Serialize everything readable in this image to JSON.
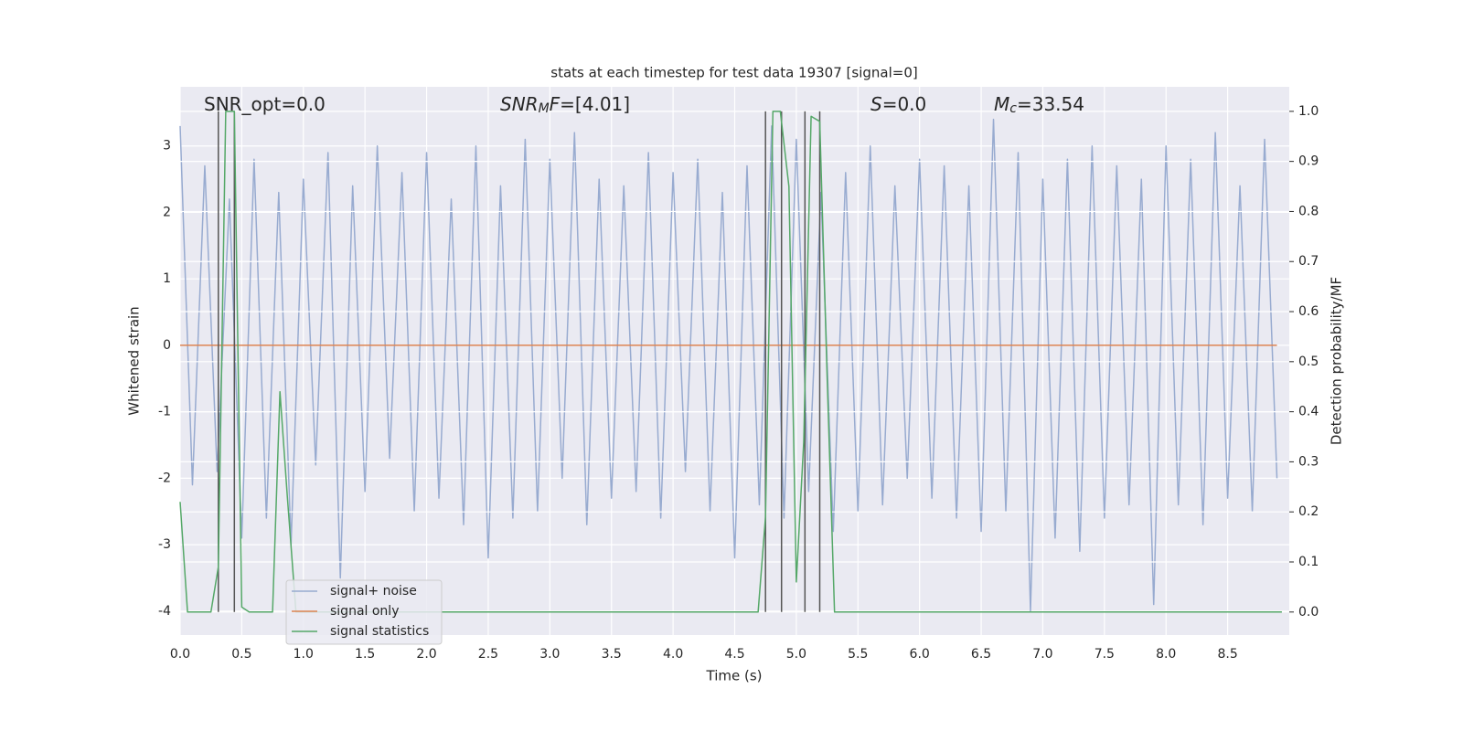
{
  "chart_data": {
    "type": "line",
    "title": "stats at each timestep for test data 19307 [signal=0]",
    "xlabel": "Time (s)",
    "ylabel": "Whitened strain",
    "y2label": "Detection probability/MF",
    "xlim": [
      0,
      9.0
    ],
    "ylim": [
      -4.36,
      3.89
    ],
    "y2lim": [
      -0.046,
      1.049
    ],
    "xticks": [
      {
        "value": 0,
        "label": "0.0"
      },
      0.5,
      {
        "value": 1,
        "label": "1.0"
      },
      1.5,
      {
        "value": 2,
        "label": "2.0"
      },
      2.5,
      {
        "value": 3,
        "label": "3.0"
      },
      3.5,
      {
        "value": 4,
        "label": "4.0"
      },
      4.5,
      {
        "value": 5,
        "label": "5.0"
      },
      5.5,
      {
        "value": 6,
        "label": "6.0"
      },
      6.5,
      {
        "value": 7,
        "label": "7.0"
      },
      7.5,
      {
        "value": 8,
        "label": "8.0"
      },
      8.5
    ],
    "yticks": [
      -4,
      -3,
      -2,
      -1,
      0,
      1,
      2,
      3
    ],
    "y2ticks": [
      {
        "value": 0,
        "label": "0.0"
      },
      0.1,
      0.2,
      0.3,
      0.4,
      0.5,
      0.6,
      0.7,
      0.8,
      0.9,
      {
        "value": 1,
        "label": "1.0"
      }
    ],
    "grid": true,
    "legend": "lower left",
    "x": [
      0.0,
      0.1,
      0.2,
      0.3,
      0.4,
      0.5,
      0.6,
      0.7,
      0.8,
      0.9,
      1.0,
      1.1,
      1.2,
      1.3,
      1.4,
      1.5,
      1.6,
      1.7,
      1.8,
      1.9,
      2.0,
      2.1,
      2.2,
      2.3,
      2.4,
      2.5,
      2.6,
      2.7,
      2.8,
      2.9,
      3.0,
      3.1,
      3.2,
      3.3,
      3.4,
      3.5,
      3.6,
      3.7,
      3.8,
      3.9,
      4.0,
      4.1,
      4.2,
      4.3,
      4.4,
      4.5,
      4.6,
      4.7,
      4.8,
      4.9,
      5.0,
      5.1,
      5.2,
      5.3,
      5.4,
      5.5,
      5.6,
      5.7,
      5.8,
      5.9,
      6.0,
      6.1,
      6.2,
      6.3,
      6.4,
      6.5,
      6.6,
      6.7,
      6.8,
      6.9,
      7.0,
      7.1,
      7.2,
      7.3,
      7.4,
      7.5,
      7.6,
      7.7,
      7.8,
      7.9,
      8.0,
      8.1,
      8.2,
      8.3,
      8.4,
      8.5,
      8.6,
      8.7,
      8.8,
      8.9
    ],
    "series": [
      {
        "name": "signal+ noise",
        "color": "#98abd0",
        "values": [
          3.3,
          -2.1,
          2.7,
          -1.9,
          2.2,
          -2.9,
          2.8,
          -2.6,
          2.3,
          -3.0,
          2.5,
          -1.8,
          2.9,
          -3.5,
          2.4,
          -2.2,
          3.0,
          -1.7,
          2.6,
          -2.5,
          2.9,
          -2.3,
          2.2,
          -2.7,
          3.0,
          -3.2,
          2.4,
          -2.6,
          3.1,
          -2.5,
          2.8,
          -2.0,
          3.2,
          -2.7,
          2.5,
          -2.3,
          2.4,
          -2.2,
          2.9,
          -2.6,
          2.6,
          -1.9,
          2.8,
          -2.5,
          2.3,
          -3.2,
          2.7,
          -2.4,
          3.3,
          -2.6,
          3.1,
          -2.2,
          2.3,
          -2.8,
          2.6,
          -2.5,
          3.0,
          -2.4,
          2.4,
          -2.0,
          2.8,
          -2.3,
          2.7,
          -2.6,
          2.4,
          -2.8,
          3.4,
          -2.5,
          2.9,
          -4.0,
          2.5,
          -2.9,
          2.8,
          -3.1,
          3.0,
          -2.6,
          2.7,
          -2.4,
          2.5,
          -3.9,
          3.0,
          -2.4,
          2.8,
          -2.7,
          3.2,
          -2.3,
          2.4,
          -2.5,
          3.1,
          -2.0
        ]
      },
      {
        "name": "signal only",
        "color": "#dd8452",
        "values": [
          0,
          0,
          0,
          0,
          0,
          0,
          0,
          0,
          0,
          0,
          0,
          0,
          0,
          0,
          0,
          0,
          0,
          0,
          0,
          0,
          0,
          0,
          0,
          0,
          0,
          0,
          0,
          0,
          0,
          0,
          0,
          0,
          0,
          0,
          0,
          0,
          0,
          0,
          0,
          0,
          0,
          0,
          0,
          0,
          0,
          0,
          0,
          0,
          0,
          0,
          0,
          0,
          0,
          0,
          0,
          0,
          0,
          0,
          0,
          0,
          0,
          0,
          0,
          0,
          0,
          0,
          0,
          0,
          0,
          0,
          0,
          0,
          0,
          0,
          0,
          0,
          0,
          0,
          0,
          0,
          0,
          0,
          0,
          0,
          0,
          0,
          0,
          0,
          0,
          0
        ]
      },
      {
        "name": "signal statistics",
        "color": "#55a868",
        "axis": "y2",
        "x": [
          0.0,
          0.06,
          0.25,
          0.31,
          0.37,
          0.44,
          0.5,
          0.56,
          0.75,
          0.81,
          0.87,
          0.94,
          1.5,
          2.5,
          3.5,
          4.0,
          4.5,
          4.69,
          4.75,
          4.81,
          4.87,
          4.94,
          5.0,
          5.06,
          5.12,
          5.19,
          5.25,
          5.31,
          6.0,
          7.0,
          7.5,
          8.0,
          8.5,
          8.94
        ],
        "values": [
          0.22,
          0.0,
          0.0,
          0.09,
          1.0,
          1.0,
          0.01,
          0.0,
          0.0,
          0.44,
          0.23,
          0.0,
          0.0,
          0.0,
          0.0,
          0.0,
          0.0,
          0.0,
          0.19,
          1.0,
          1.0,
          0.85,
          0.06,
          0.34,
          0.99,
          0.98,
          0.47,
          0.0,
          0.0,
          0.0,
          0.0,
          0.0,
          0.0,
          0.0
        ]
      }
    ],
    "vlines": {
      "x": [
        0.31,
        0.44,
        4.75,
        4.88,
        5.07,
        5.19
      ],
      "ymin": 0,
      "ymax": 1,
      "axis": "y2",
      "color": "#555555"
    },
    "annotations": [
      {
        "parts": [
          {
            "text": "SNR_opt=0.0"
          }
        ]
      },
      {
        "parts": [
          {
            "text": "SNR",
            "italic": true
          },
          {
            "text": "M",
            "italic": true,
            "sub": true
          },
          {
            "text": "F",
            "italic": true
          },
          {
            "text": "=[4.01]"
          }
        ]
      },
      {
        "parts": [
          {
            "text": "S",
            "italic": true
          },
          {
            "text": "=0.0"
          }
        ]
      },
      {
        "parts": [
          {
            "text": "M",
            "italic": true
          },
          {
            "text": "c",
            "italic": true,
            "sub": true
          },
          {
            "text": "=33.54"
          }
        ]
      }
    ]
  }
}
